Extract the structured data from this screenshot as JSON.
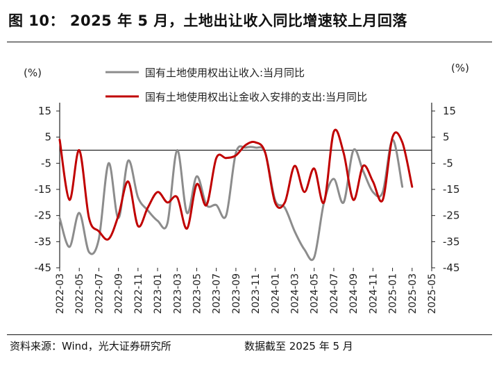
{
  "header": {
    "figure_title": "图 10： 2025 年 5 月，土地出让收入同比增速较上月回落"
  },
  "footer": {
    "source": "资料来源：Wind，光大证券研究所",
    "date_note": "数据截至 2025 年 5 月"
  },
  "chart_data": {
    "type": "line",
    "title": "",
    "xlabel": "",
    "ylabel_left": "(%)",
    "ylabel_right": "(%)",
    "ylim": [
      -45,
      15
    ],
    "yticks": [
      15,
      5,
      -5,
      -15,
      -25,
      -35,
      -45
    ],
    "grid": false,
    "legend_position": "top-center",
    "x": [
      "2022-03",
      "2022-04",
      "2022-05",
      "2022-06",
      "2022-07",
      "2022-08",
      "2022-09",
      "2022-10",
      "2022-11",
      "2022-12",
      "2023-01",
      "2023-02",
      "2023-03",
      "2023-04",
      "2023-05",
      "2023-06",
      "2023-07",
      "2023-08",
      "2023-09",
      "2023-10",
      "2023-11",
      "2023-12",
      "2024-01",
      "2024-02",
      "2024-03",
      "2024-04",
      "2024-05",
      "2024-06",
      "2024-07",
      "2024-08",
      "2024-09",
      "2024-10",
      "2024-11",
      "2024-12",
      "2025-01",
      "2025-02",
      "2025-03",
      "2025-04",
      "2025-05"
    ],
    "xtick_labels": [
      "2022-03",
      "2022-05",
      "2022-07",
      "2022-09",
      "2022-11",
      "2023-01",
      "2023-03",
      "2023-05",
      "2023-07",
      "2023-09",
      "2023-11",
      "2024-01",
      "2024-03",
      "2024-05",
      "2024-07",
      "2024-09",
      "2024-11",
      "2025-01",
      "2025-03",
      "2025-05"
    ],
    "series": [
      {
        "name": "国有土地使用权出让收入:当月同比",
        "color": "#8c8c8c",
        "values": [
          -26,
          -37,
          -24,
          -39,
          -34,
          -5,
          -26,
          -4,
          -18,
          -23,
          -27,
          -28,
          0,
          -24,
          -10,
          -21,
          -21,
          -25,
          -1,
          1,
          1,
          -1,
          -19,
          -22,
          -31,
          -38,
          -41,
          -20,
          -11,
          -20,
          0,
          -8,
          -16,
          -16,
          4,
          -14,
          null,
          null,
          null
        ]
      },
      {
        "name": "国有土地使用权出让金收入安排的支出:当月同比",
        "color": "#c00000",
        "values": [
          4,
          -19,
          0,
          -26,
          -31,
          -34,
          -25,
          -12,
          -29,
          -22,
          -16,
          -20,
          -18,
          -30,
          -13,
          -21,
          -3,
          -3,
          -2,
          2,
          3,
          -1,
          -20,
          -20,
          -6,
          -16,
          -7,
          -20,
          7,
          -1,
          -19,
          -6,
          -12,
          -19,
          5,
          3,
          -14,
          null,
          null
        ]
      }
    ]
  }
}
